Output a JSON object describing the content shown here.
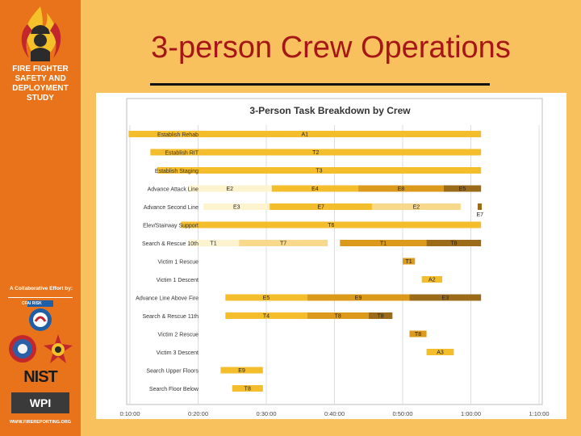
{
  "slide": {
    "title": "3-person Crew Operations"
  },
  "sidebar": {
    "org_lines": [
      "FIRE FIGHTER",
      "SAFETY AND",
      "DEPLOYMENT",
      "STUDY"
    ],
    "collab": "A Collaborative Effort by:",
    "partners": [
      "CFAI RISK",
      "NIST",
      "WPI"
    ],
    "website": "WWW.FIREREPORTING.ORG",
    "logo_icon": "firefighter-flame-icon"
  },
  "chart_data": {
    "type": "bar",
    "title": "3-Person Task Breakdown by Crew",
    "xlim": [
      10,
      70
    ],
    "x_ticks": [
      "0:10:00",
      "0:20:00",
      "0:30:00",
      "0:40:00",
      "0:50:00",
      "1:00:00",
      "1:10:00"
    ],
    "x_tick_values": [
      10,
      20,
      30,
      40,
      50,
      60,
      70
    ],
    "x_units": "minutes",
    "categories": [
      "Establish Rehab",
      "Establish RIT",
      "Establish Staging",
      "Advance Attack Line",
      "Advance Second Line",
      "Elev/Stairway Support",
      "Search & Rescue 10th",
      "Victim 1 Rescue",
      "Victim 1 Descent",
      "Advance Line Above Fire",
      "Search & Rescue 11th",
      "Victim 2 Rescue",
      "Victim 3 Descent",
      "Search Upper Floors",
      "Search Floor Below"
    ],
    "tasks": [
      {
        "row": 0,
        "label": "A1",
        "start": 9.8,
        "end": 61.5,
        "color": "#f4bd2c"
      },
      {
        "row": 1,
        "label": "T2",
        "start": 13.0,
        "end": 61.5,
        "color": "#f4bd2c"
      },
      {
        "row": 2,
        "label": "T3",
        "start": 14.0,
        "end": 61.5,
        "color": "#f4bd2c"
      },
      {
        "row": 3,
        "label": "E2",
        "start": 18.5,
        "end": 30.8,
        "color": "#fdf3cf"
      },
      {
        "row": 3,
        "label": "E4",
        "start": 30.8,
        "end": 43.5,
        "color": "#f4bd2c"
      },
      {
        "row": 3,
        "label": "E8",
        "start": 43.5,
        "end": 56.0,
        "color": "#dc9a1c"
      },
      {
        "row": 3,
        "label": "E5",
        "start": 56.0,
        "end": 61.5,
        "color": "#9c6b1a"
      },
      {
        "row": 4,
        "label": "E3",
        "start": 20.8,
        "end": 30.5,
        "color": "#fdf3cf"
      },
      {
        "row": 4,
        "label": "E7",
        "start": 30.5,
        "end": 45.5,
        "color": "#f4bd2c"
      },
      {
        "row": 4,
        "label": "E2",
        "start": 45.5,
        "end": 58.5,
        "color": "#f8d88a"
      },
      {
        "row": 4,
        "label": "E7",
        "start": 61.0,
        "end": 61.6,
        "color": "#9c6b1a"
      },
      {
        "row": 5,
        "label": "T6",
        "start": 17.5,
        "end": 61.5,
        "color": "#f4bd2c"
      },
      {
        "row": 6,
        "label": "T1",
        "start": 18.5,
        "end": 26.0,
        "color": "#fdf3cf"
      },
      {
        "row": 6,
        "label": "T7",
        "start": 26.0,
        "end": 39.0,
        "color": "#f8d88a"
      },
      {
        "row": 6,
        "label": "T1",
        "start": 40.8,
        "end": 53.5,
        "color": "#dc9a1c"
      },
      {
        "row": 6,
        "label": "T8",
        "start": 53.5,
        "end": 61.5,
        "color": "#9c6b1a"
      },
      {
        "row": 7,
        "label": "T1",
        "start": 50.0,
        "end": 51.8,
        "color": "#dc9a1c"
      },
      {
        "row": 8,
        "label": "A2",
        "start": 52.8,
        "end": 55.8,
        "color": "#f4bd2c"
      },
      {
        "row": 9,
        "label": "E5",
        "start": 24.0,
        "end": 36.0,
        "color": "#f4bd2c"
      },
      {
        "row": 9,
        "label": "E9",
        "start": 36.0,
        "end": 51.0,
        "color": "#dc9a1c"
      },
      {
        "row": 9,
        "label": "E3",
        "start": 51.0,
        "end": 61.5,
        "color": "#9c6b1a"
      },
      {
        "row": 10,
        "label": "T4",
        "start": 24.0,
        "end": 36.0,
        "color": "#f4bd2c"
      },
      {
        "row": 10,
        "label": "T8",
        "start": 36.0,
        "end": 45.0,
        "color": "#dc9a1c"
      },
      {
        "row": 10,
        "label": "T8",
        "start": 45.0,
        "end": 48.5,
        "color": "#9c6b1a"
      },
      {
        "row": 11,
        "label": "T8",
        "start": 51.0,
        "end": 53.5,
        "color": "#dc9a1c"
      },
      {
        "row": 12,
        "label": "A3",
        "start": 53.5,
        "end": 57.5,
        "color": "#f4bd2c"
      },
      {
        "row": 13,
        "label": "E9",
        "start": 23.3,
        "end": 29.5,
        "color": "#f4bd2c"
      },
      {
        "row": 14,
        "label": "T8",
        "start": 25.0,
        "end": 29.5,
        "color": "#f4bd2c"
      }
    ]
  }
}
